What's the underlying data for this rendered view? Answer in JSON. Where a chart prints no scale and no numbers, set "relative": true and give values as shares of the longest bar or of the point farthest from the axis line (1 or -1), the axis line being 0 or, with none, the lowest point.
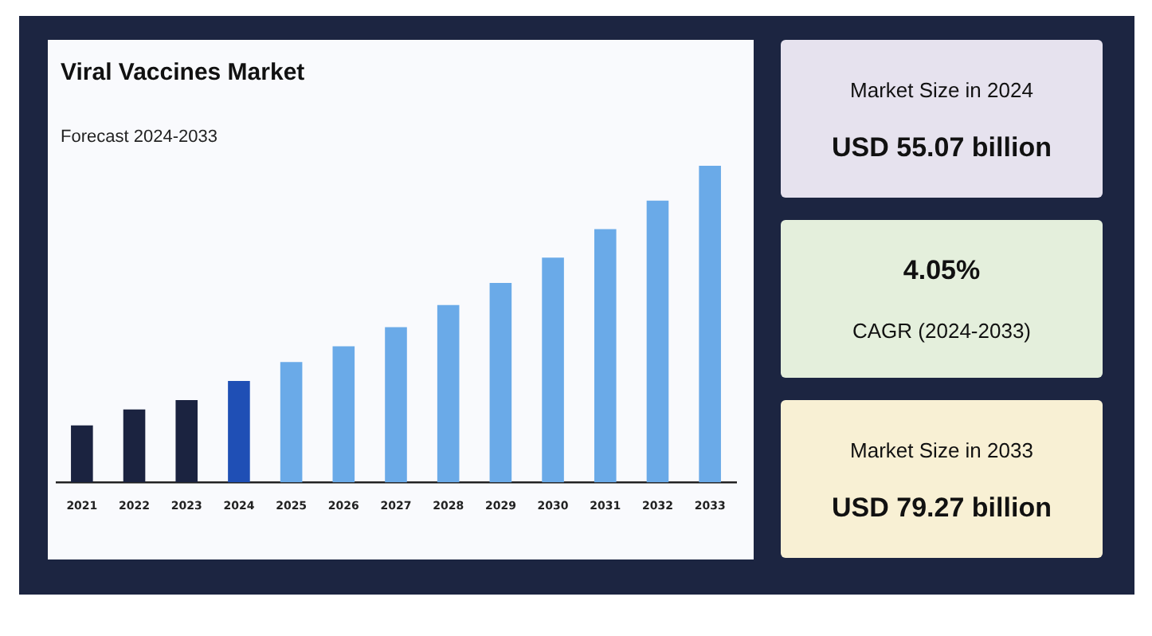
{
  "chart_data": [
    {
      "type": "bar",
      "title": "Viral Vaccines Market",
      "subtitle": "Forecast 2024-2033",
      "relative": true,
      "grid": false,
      "legend": false,
      "categories": [
        "2021",
        "2022",
        "2023",
        "2024",
        "2025",
        "2026",
        "2027",
        "2028",
        "2029",
        "2030",
        "2031",
        "2032",
        "2033"
      ],
      "values": [
        0.18,
        0.23,
        0.26,
        0.32,
        0.38,
        0.43,
        0.49,
        0.56,
        0.63,
        0.71,
        0.8,
        0.89,
        1
      ],
      "colors": [
        "#1b2340",
        "#1b2340",
        "#1b2340",
        "#1f4fb5",
        "#6aaae8",
        "#6aaae8",
        "#6aaae8",
        "#6aaae8",
        "#6aaae8",
        "#6aaae8",
        "#6aaae8",
        "#6aaae8",
        "#6aaae8"
      ]
    },
    {
      "type": "other",
      "title": "Market Size in 2024",
      "annotations": [
        "USD 55.07 billion"
      ]
    },
    {
      "type": "other",
      "title": "4.05%",
      "annotations": [
        "CAGR (2024-2033)"
      ]
    },
    {
      "type": "other",
      "title": "Market Size in 2033",
      "annotations": [
        "USD 79.27 billion"
      ]
    }
  ]
}
